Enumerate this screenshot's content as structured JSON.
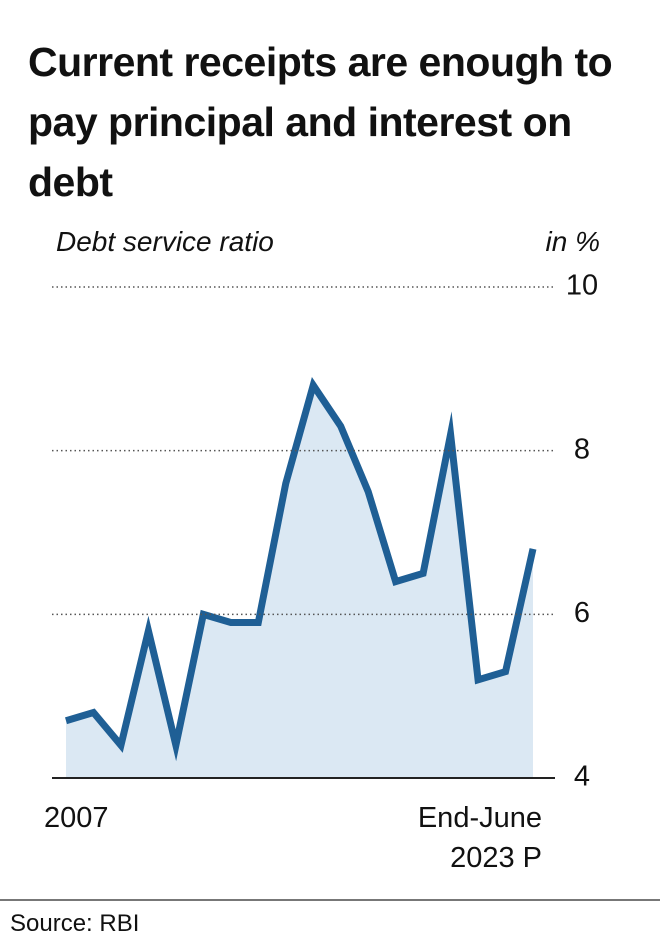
{
  "chart_data": {
    "type": "area_line",
    "title": "Current receipts are enough to pay principal and interest on debt",
    "subtitle": "Debt service ratio",
    "unit_label": "in %",
    "source": "Source: RBI",
    "categories": [
      "2007",
      null,
      null,
      null,
      null,
      null,
      null,
      null,
      null,
      null,
      null,
      null,
      null,
      null,
      null,
      null,
      null,
      "End-June 2023 P"
    ],
    "series": [
      {
        "name": "Debt service ratio",
        "color": "#1f5f95",
        "values": [
          4.7,
          4.8,
          4.4,
          5.8,
          4.4,
          6.0,
          5.9,
          5.9,
          7.6,
          8.8,
          8.3,
          7.5,
          6.4,
          6.5,
          8.2,
          5.2,
          5.3,
          6.8
        ]
      }
    ],
    "area_color": "#dbe8f3",
    "ylim": [
      4,
      10
    ],
    "yticks": [
      4,
      6,
      8,
      10
    ],
    "grid": true
  }
}
